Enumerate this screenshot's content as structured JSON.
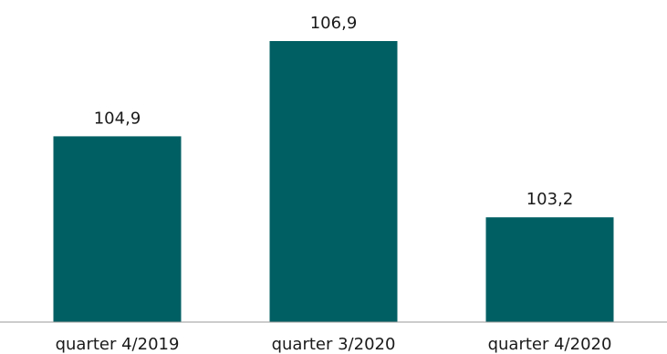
{
  "colors": {
    "bar": "#005f63",
    "axis": "#9a9a9a",
    "text": "#1a1a1a",
    "background": "#ffffff"
  },
  "chart_data": {
    "type": "bar",
    "categories": [
      "quarter 4/2019",
      "quarter 3/2020",
      "quarter 4/2020"
    ],
    "values": [
      104.9,
      106.9,
      103.2
    ],
    "value_labels": [
      "104,9",
      "106,9",
      "103,2"
    ],
    "title": "",
    "xlabel": "",
    "ylabel": "",
    "ylim": [
      101.0,
      106.9
    ],
    "grid": false,
    "legend": "none"
  }
}
